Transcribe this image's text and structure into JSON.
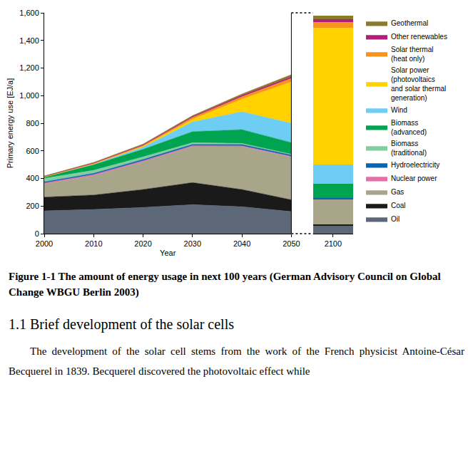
{
  "chart_data": [
    {
      "type": "area",
      "stacked": true,
      "x": [
        2000,
        2010,
        2020,
        2030,
        2040,
        2050
      ],
      "xlim": [
        2000,
        2050
      ],
      "xticks": [
        2000,
        2010,
        2020,
        2030,
        2040,
        2050
      ],
      "ylim": [
        0,
        1600
      ],
      "yticks": [
        0,
        200,
        400,
        600,
        800,
        1000,
        1200,
        1400,
        1600
      ],
      "x_label": "Year",
      "y_label": "Primary energy use [EJ/a]",
      "grid": false,
      "legend": "right",
      "series": [
        {
          "name": "Oil",
          "color": "#5c6878",
          "values": [
            165,
            175,
            190,
            210,
            195,
            160
          ]
        },
        {
          "name": "Coal",
          "color": "#1a1a1a",
          "values": [
            100,
            105,
            130,
            160,
            125,
            85
          ]
        },
        {
          "name": "Gas",
          "color": "#a9a58a",
          "values": [
            95,
            140,
            200,
            260,
            310,
            310
          ]
        },
        {
          "name": "Nuclear power",
          "color": "#e46fa9",
          "values": [
            7,
            8,
            8,
            7,
            6,
            5
          ]
        },
        {
          "name": "Hydroelectricity",
          "color": "#0a64b0",
          "values": [
            8,
            9,
            10,
            10,
            10,
            10
          ]
        },
        {
          "name": "Biomass (traditional)",
          "color": "#80cfa0",
          "values": [
            25,
            22,
            18,
            12,
            8,
            5
          ]
        },
        {
          "name": "Biomass (advanced)",
          "color": "#00a34f",
          "values": [
            10,
            40,
            55,
            80,
            100,
            85
          ]
        },
        {
          "name": "Wind",
          "color": "#6dcdf2",
          "values": [
            0,
            5,
            15,
            70,
            130,
            140
          ]
        },
        {
          "name": "Solar power (photovoltaics and solar thermal generation)",
          "color": "#ffd200",
          "values": [
            0,
            0,
            5,
            20,
            90,
            300
          ]
        },
        {
          "name": "Solar thermal (heat only)",
          "color": "#f7941d",
          "values": [
            3,
            5,
            8,
            12,
            18,
            25
          ]
        },
        {
          "name": "Other renewables",
          "color": "#b01f7c",
          "values": [
            2,
            3,
            5,
            7,
            10,
            12
          ]
        },
        {
          "name": "Geothermal",
          "color": "#8a7a2c",
          "values": [
            3,
            4,
            5,
            7,
            10,
            15
          ]
        }
      ]
    },
    {
      "type": "bar",
      "stacked": true,
      "categories": [
        "2100"
      ],
      "ylim": [
        0,
        1600
      ],
      "tick_labels": "x",
      "grid": false,
      "series": [
        {
          "name": "Oil",
          "color": "#5c6878",
          "values": [
            60
          ]
        },
        {
          "name": "Coal",
          "color": "#1a1a1a",
          "values": [
            5
          ]
        },
        {
          "name": "Gas",
          "color": "#a9a58a",
          "values": [
            185
          ]
        },
        {
          "name": "Nuclear power",
          "color": "#e46fa9",
          "values": [
            2
          ]
        },
        {
          "name": "Hydroelectricity",
          "color": "#0a64b0",
          "values": [
            8
          ]
        },
        {
          "name": "Biomass (traditional)",
          "color": "#80cfa0",
          "values": [
            0
          ]
        },
        {
          "name": "Biomass (advanced)",
          "color": "#00a34f",
          "values": [
            100
          ]
        },
        {
          "name": "Wind",
          "color": "#6dcdf2",
          "values": [
            140
          ]
        },
        {
          "name": "Solar power (photovoltaics and solar thermal generation)",
          "color": "#ffd200",
          "values": [
            990
          ]
        },
        {
          "name": "Solar thermal (heat only)",
          "color": "#f7941d",
          "values": [
            45
          ]
        },
        {
          "name": "Other renewables",
          "color": "#b01f7c",
          "values": [
            20
          ]
        },
        {
          "name": "Geothermal",
          "color": "#8a7a2c",
          "values": [
            25
          ]
        }
      ]
    }
  ],
  "figure_caption": "Figure 1-1 The amount of energy usage in next 100 years (German Advisory Council on Global Change WBGU Berlin 2003)",
  "section_heading": "1.1 Brief development of the solar cells",
  "body_text": "The development of the solar cell stems from the work of the French physicist Antoine-César Becquerel in 1839. Becquerel discovered the photovoltaic effect while"
}
